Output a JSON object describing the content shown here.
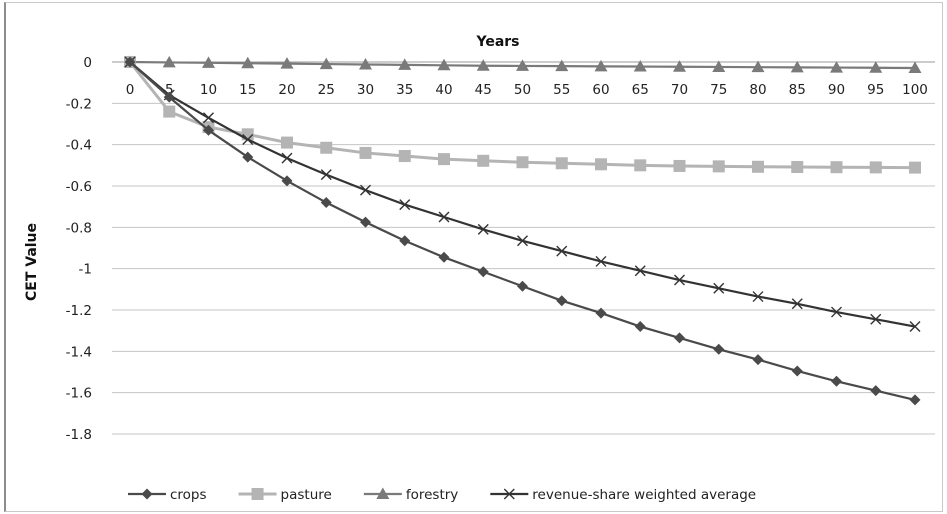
{
  "chart_data": {
    "type": "line",
    "title": "Years",
    "xlabel": "Years",
    "ylabel": "CET Value",
    "x": [
      0,
      5,
      10,
      15,
      20,
      25,
      30,
      35,
      40,
      45,
      50,
      55,
      60,
      65,
      70,
      75,
      80,
      85,
      90,
      95,
      100
    ],
    "ylim": [
      -1.8,
      0
    ],
    "yticks": [
      "0",
      "-0.2",
      "-0.4",
      "-0.6",
      "-0.8",
      "-1",
      "-1.2",
      "-1.4",
      "-1.6",
      "-1.8"
    ],
    "xticks": [
      "0",
      "5",
      "10",
      "15",
      "20",
      "25",
      "30",
      "35",
      "40",
      "45",
      "50",
      "55",
      "60",
      "65",
      "70",
      "75",
      "80",
      "85",
      "90",
      "95",
      "100"
    ],
    "grid": true,
    "legend_position": "bottom",
    "series": [
      {
        "name": "crops",
        "color": "#4a4a4a",
        "marker": "diamond",
        "values": [
          0,
          -0.17,
          -0.33,
          -0.46,
          -0.575,
          -0.68,
          -0.775,
          -0.865,
          -0.945,
          -1.015,
          -1.085,
          -1.155,
          -1.215,
          -1.28,
          -1.335,
          -1.39,
          -1.44,
          -1.495,
          -1.545,
          -1.59,
          -1.635
        ]
      },
      {
        "name": "pasture",
        "color": "#b4b4b4",
        "marker": "square",
        "values": [
          0,
          -0.24,
          -0.315,
          -0.35,
          -0.39,
          -0.415,
          -0.44,
          -0.455,
          -0.47,
          -0.478,
          -0.485,
          -0.49,
          -0.495,
          -0.5,
          -0.503,
          -0.505,
          -0.507,
          -0.508,
          -0.509,
          -0.51,
          -0.511
        ]
      },
      {
        "name": "forestry",
        "color": "#7a7a7a",
        "marker": "triangle",
        "values": [
          0,
          -0.002,
          -0.004,
          -0.006,
          -0.008,
          -0.01,
          -0.012,
          -0.014,
          -0.016,
          -0.018,
          -0.019,
          -0.02,
          -0.021,
          -0.022,
          -0.023,
          -0.024,
          -0.025,
          -0.026,
          -0.027,
          -0.028,
          -0.029
        ]
      },
      {
        "name": "revenue-share weighted average",
        "color": "#333333",
        "marker": "x",
        "values": [
          0,
          -0.16,
          -0.27,
          -0.375,
          -0.465,
          -0.545,
          -0.62,
          -0.69,
          -0.75,
          -0.81,
          -0.865,
          -0.915,
          -0.965,
          -1.01,
          -1.055,
          -1.095,
          -1.135,
          -1.17,
          -1.21,
          -1.245,
          -1.28
        ]
      }
    ]
  }
}
